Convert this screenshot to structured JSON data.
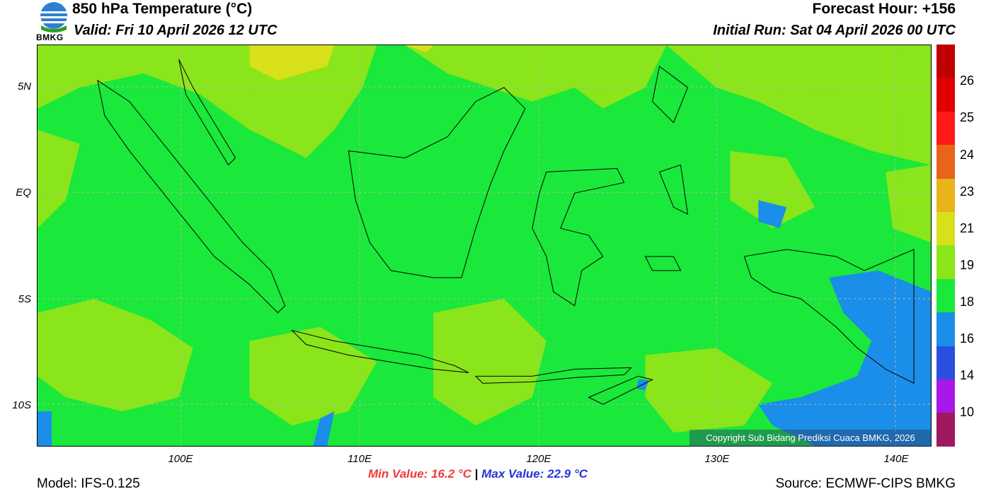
{
  "header": {
    "title": "850 hPa Temperature (°C)",
    "valid": "Valid: Fri 10 April 2026 12 UTC",
    "forecast_hour": "Forecast Hour: +156",
    "initial_run": "Initial Run: Sat 04 April 2026 00 UTC"
  },
  "logo": {
    "text": "BMKG"
  },
  "map": {
    "lat_labels": [
      "5N",
      "EQ",
      "5S",
      "10S"
    ],
    "lon_labels": [
      "100E",
      "110E",
      "120E",
      "130E",
      "140E"
    ],
    "copyright": "Copyright Sub Bidang Prediksi Cuaca BMKG, 2026"
  },
  "colorbar": {
    "labels": [
      "26",
      "25",
      "24",
      "23",
      "21",
      "19",
      "18",
      "16",
      "14",
      "10"
    ],
    "colors": [
      "#c00000",
      "#e00000",
      "#ff1a1a",
      "#e8641a",
      "#e8b41a",
      "#d8e01a",
      "#8ae51a",
      "#1ae83a",
      "#1a8ee8",
      "#2a4ee0",
      "#a818e8",
      "#a01860"
    ]
  },
  "footer": {
    "model": "Model: IFS-0.125",
    "min_value": "Min Value: 16.2 °C",
    "separator": "|",
    "max_value": "Max Value: 22.9 °C",
    "source": "Source: ECMWF-CIPS BMKG"
  }
}
